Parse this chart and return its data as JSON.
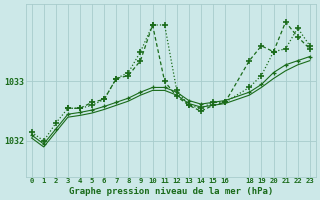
{
  "title": "Graphe pression niveau de la mer (hPa)",
  "bg_color": "#cce8e8",
  "line_color": "#1a6b1a",
  "grid_color": "#a8cccc",
  "yticks": [
    1032,
    1033
  ],
  "ylim": [
    1031.4,
    1034.3
  ],
  "xlim": [
    -0.5,
    23.5
  ],
  "xticks": [
    0,
    1,
    2,
    3,
    4,
    5,
    6,
    7,
    8,
    9,
    10,
    11,
    12,
    13,
    14,
    15,
    16,
    18,
    19,
    20,
    21,
    22,
    23
  ],
  "series1_x": [
    0,
    1,
    2,
    3,
    4,
    5,
    6,
    7,
    8,
    9,
    10,
    11,
    12,
    13,
    14,
    15,
    16,
    18,
    19,
    20,
    21,
    22,
    23
  ],
  "series1_y": [
    1032.15,
    1032.0,
    1032.3,
    1032.55,
    1032.55,
    1032.6,
    1032.7,
    1033.05,
    1033.15,
    1033.5,
    1033.95,
    1033.95,
    1032.85,
    1032.6,
    1032.55,
    1032.65,
    1032.65,
    1032.9,
    1033.1,
    1033.5,
    1033.55,
    1033.9,
    1033.6
  ],
  "series2_x": [
    3,
    4,
    5,
    6,
    7,
    8,
    9,
    10,
    11,
    12,
    13,
    14,
    15,
    16,
    18,
    19,
    20,
    21,
    22,
    23
  ],
  "series2_y": [
    1032.55,
    1032.55,
    1032.65,
    1032.7,
    1033.05,
    1033.1,
    1033.35,
    1033.95,
    1033.0,
    1032.75,
    1032.6,
    1032.5,
    1032.6,
    1032.65,
    1033.35,
    1033.6,
    1033.5,
    1034.0,
    1033.75,
    1033.55
  ],
  "series3_x": [
    0,
    1,
    2,
    3,
    4,
    5,
    6,
    7,
    8,
    9,
    10,
    11,
    12,
    13,
    14,
    15,
    16,
    18,
    19,
    20,
    21,
    22,
    23
  ],
  "series3_y": [
    1032.1,
    1031.95,
    1032.2,
    1032.45,
    1032.48,
    1032.52,
    1032.58,
    1032.65,
    1032.72,
    1032.82,
    1032.9,
    1032.9,
    1032.82,
    1032.68,
    1032.62,
    1032.65,
    1032.68,
    1032.82,
    1032.95,
    1033.15,
    1033.28,
    1033.35,
    1033.42
  ],
  "series4_x": [
    0,
    1,
    2,
    3,
    4,
    5,
    6,
    7,
    8,
    9,
    10,
    11,
    12,
    13,
    14,
    15,
    16,
    18,
    19,
    20,
    21,
    22,
    23
  ],
  "series4_y": [
    1032.05,
    1031.9,
    1032.15,
    1032.4,
    1032.43,
    1032.47,
    1032.53,
    1032.6,
    1032.67,
    1032.77,
    1032.85,
    1032.85,
    1032.77,
    1032.63,
    1032.57,
    1032.6,
    1032.63,
    1032.77,
    1032.9,
    1033.05,
    1033.18,
    1033.28,
    1033.35
  ]
}
